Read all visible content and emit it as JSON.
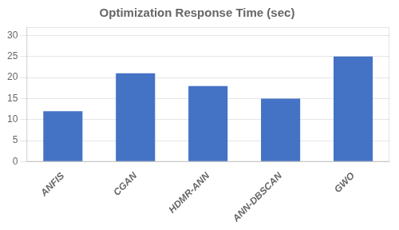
{
  "chart_data": {
    "type": "bar",
    "title": "Optimization Response Time (sec)",
    "categories": [
      "ANFIS",
      "CGAN",
      "HDMR-ANN",
      "ANN-DBSCAN",
      "GWO"
    ],
    "values": [
      12,
      21,
      18,
      15,
      25
    ],
    "color": "#4472C4",
    "ylim": [
      0,
      32
    ],
    "yticks": [
      0,
      5,
      10,
      15,
      20,
      25,
      30
    ],
    "grid": true
  }
}
